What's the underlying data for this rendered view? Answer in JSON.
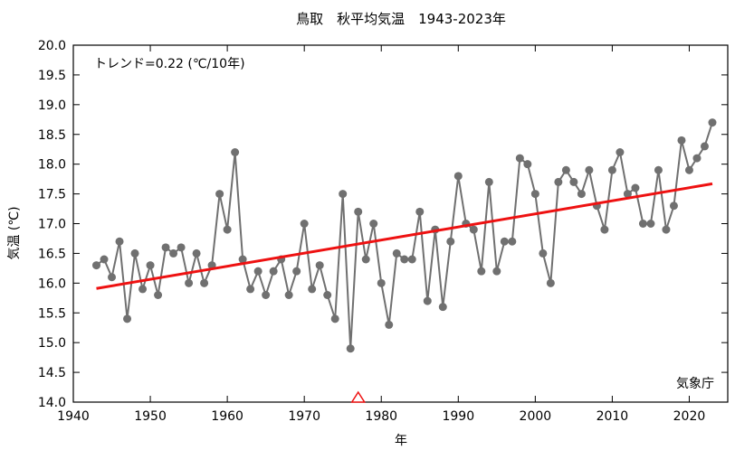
{
  "chart_data": {
    "type": "line",
    "title": "鳥取　秋平均気温　1943-2023年",
    "xlabel": "年",
    "ylabel": "気温 (℃)",
    "annotation": "トレンド=0.22 (℃/10年)",
    "source": "気象庁",
    "xlim": [
      1940,
      2025
    ],
    "ylim": [
      14.0,
      20.0
    ],
    "xticks": [
      "1940",
      "1950",
      "1960",
      "1970",
      "1980",
      "1990",
      "2000",
      "2010",
      "2020"
    ],
    "yticks": [
      "14.0",
      "14.5",
      "15.0",
      "15.5",
      "16.0",
      "16.5",
      "17.0",
      "17.5",
      "18.0",
      "18.5",
      "19.0",
      "19.5",
      "20.0"
    ],
    "grid": false,
    "series": [
      {
        "x": [
          1943,
          1944,
          1945,
          1946,
          1947,
          1948,
          1949,
          1950,
          1951,
          1952,
          1953,
          1954,
          1955,
          1956,
          1957,
          1958,
          1959,
          1960,
          1961,
          1962,
          1963,
          1964,
          1965,
          1966,
          1967,
          1968,
          1969,
          1970,
          1971,
          1972,
          1973,
          1974,
          1975,
          1976,
          1977,
          1978,
          1979,
          1980,
          1981,
          1982,
          1983,
          1984,
          1985,
          1986,
          1987,
          1988,
          1989,
          1990,
          1991,
          1992,
          1993,
          1994,
          1995,
          1996,
          1997,
          1998,
          1999,
          2000,
          2001,
          2002,
          2003,
          2004,
          2005,
          2006,
          2007,
          2008,
          2009,
          2010,
          2011,
          2012,
          2013,
          2014,
          2015,
          2016,
          2017,
          2018,
          2019,
          2020,
          2021,
          2022,
          2023
        ],
        "y": [
          16.3,
          16.4,
          16.1,
          16.7,
          15.4,
          16.5,
          15.9,
          16.3,
          15.8,
          16.6,
          16.5,
          16.6,
          16.0,
          16.5,
          16.0,
          16.3,
          17.5,
          16.9,
          18.2,
          16.4,
          15.9,
          16.2,
          15.8,
          16.2,
          16.4,
          15.8,
          16.2,
          17.0,
          15.9,
          16.3,
          15.8,
          15.4,
          17.5,
          14.9,
          17.2,
          16.4,
          17.0,
          16.0,
          15.3,
          16.5,
          16.4,
          16.4,
          17.2,
          15.7,
          16.9,
          15.6,
          16.7,
          17.8,
          17.0,
          16.9,
          16.2,
          17.7,
          16.2,
          16.7,
          16.7,
          18.1,
          18.0,
          17.5,
          16.5,
          16.0,
          17.7,
          17.9,
          17.7,
          17.5,
          17.9,
          17.3,
          16.9,
          17.9,
          18.2,
          17.5,
          17.6,
          17.0,
          17.0,
          17.9,
          16.9,
          17.3,
          18.4,
          17.9,
          18.1,
          18.3,
          18.7
        ],
        "color": "#707070"
      }
    ],
    "trend": {
      "x": [
        1943,
        2023
      ],
      "y": [
        15.91,
        17.67
      ],
      "color": "#ee1111"
    },
    "marker": {
      "year": 1977,
      "shape": "triangle",
      "color": "#ee1111"
    }
  }
}
